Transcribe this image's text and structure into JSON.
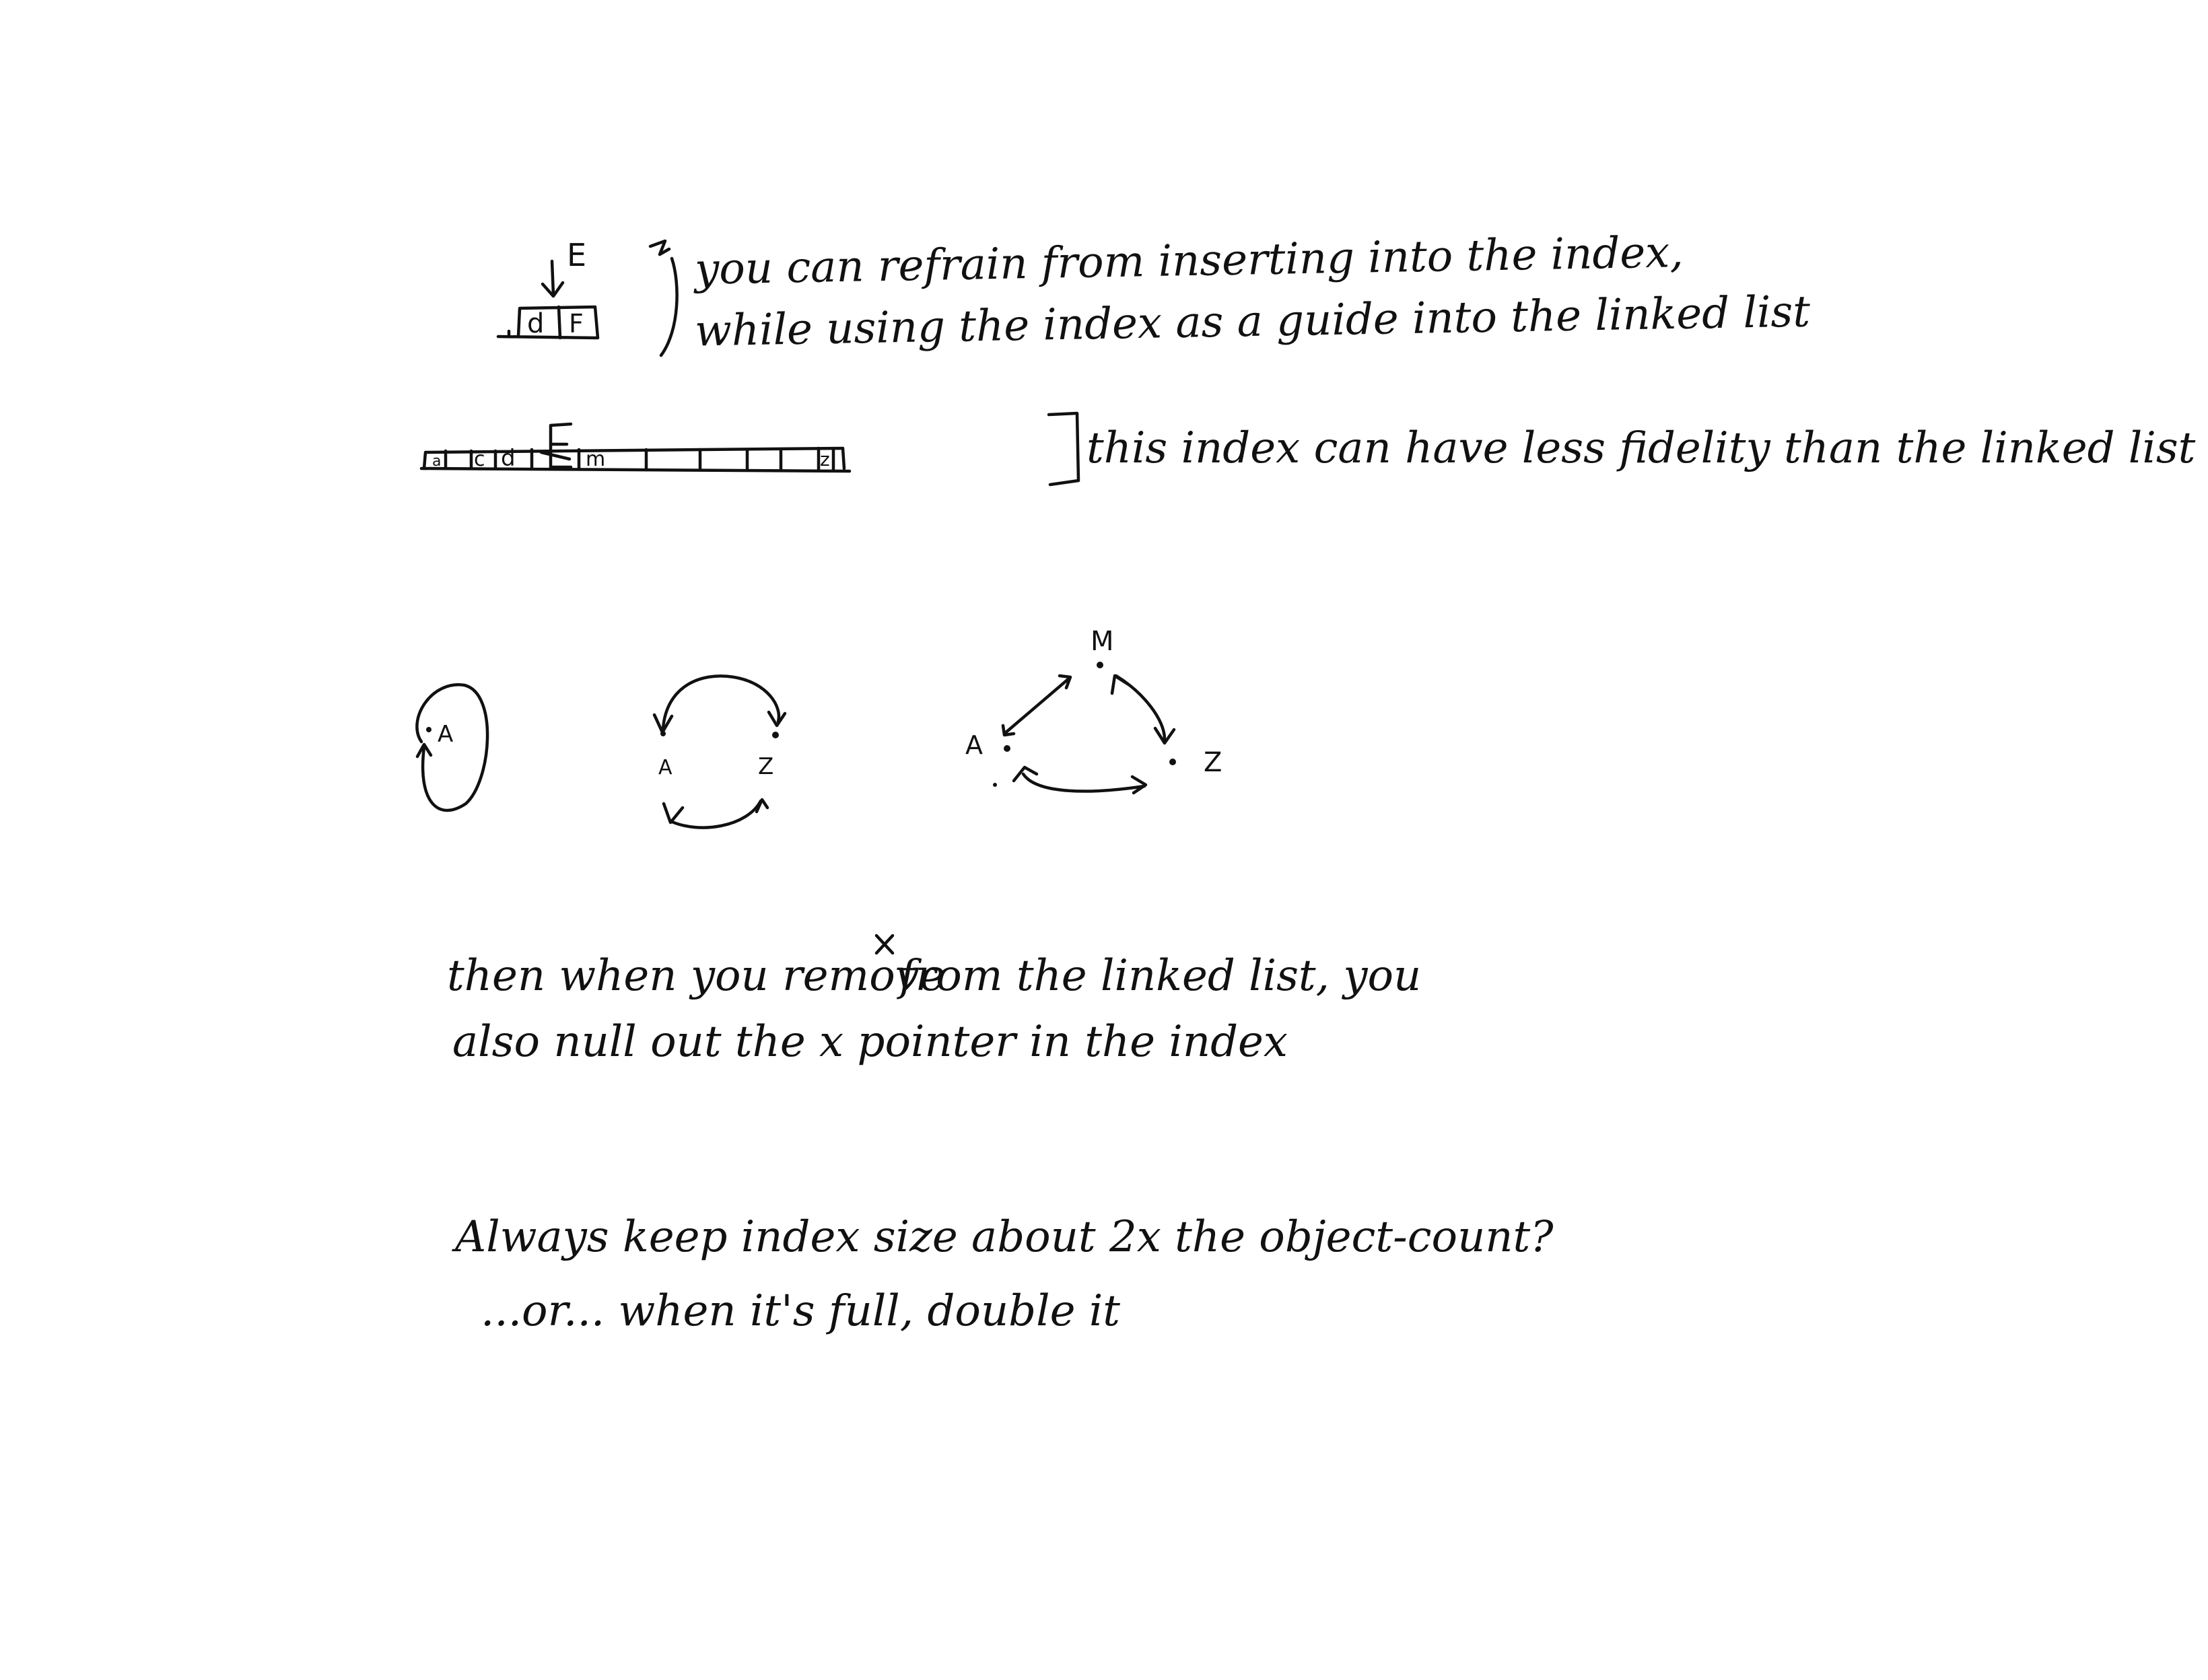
{
  "notes": {
    "refrain_line1": "you can refrain from inserting into the index,",
    "refrain_line2": "while using the index as a guide into the linked list",
    "fidelity": "this index can have less fidelity than the linked list",
    "remove_line1": "then when you remove",
    "remove_x_mark": "x",
    "remove_line1b": "from the linked list, you",
    "remove_line2": "also null out the x pointer in the index",
    "size_line1": "Always keep index size about 2x the object-count?",
    "size_line2": "...or... when it's full, double it"
  },
  "insert_diagram": {
    "new_key": "E",
    "cells": [
      "d",
      "F"
    ]
  },
  "index_array": {
    "cells": [
      "a",
      "c",
      "d",
      "E",
      "m",
      "",
      "",
      "",
      "",
      "z"
    ]
  },
  "rings": {
    "one_node": [
      "A"
    ],
    "two_nodes": [
      "A",
      "Z"
    ],
    "three_nodes": [
      "M",
      "A",
      "Z"
    ]
  },
  "style": {
    "ink_color": "#111111",
    "paper_color": "#ffffff"
  }
}
